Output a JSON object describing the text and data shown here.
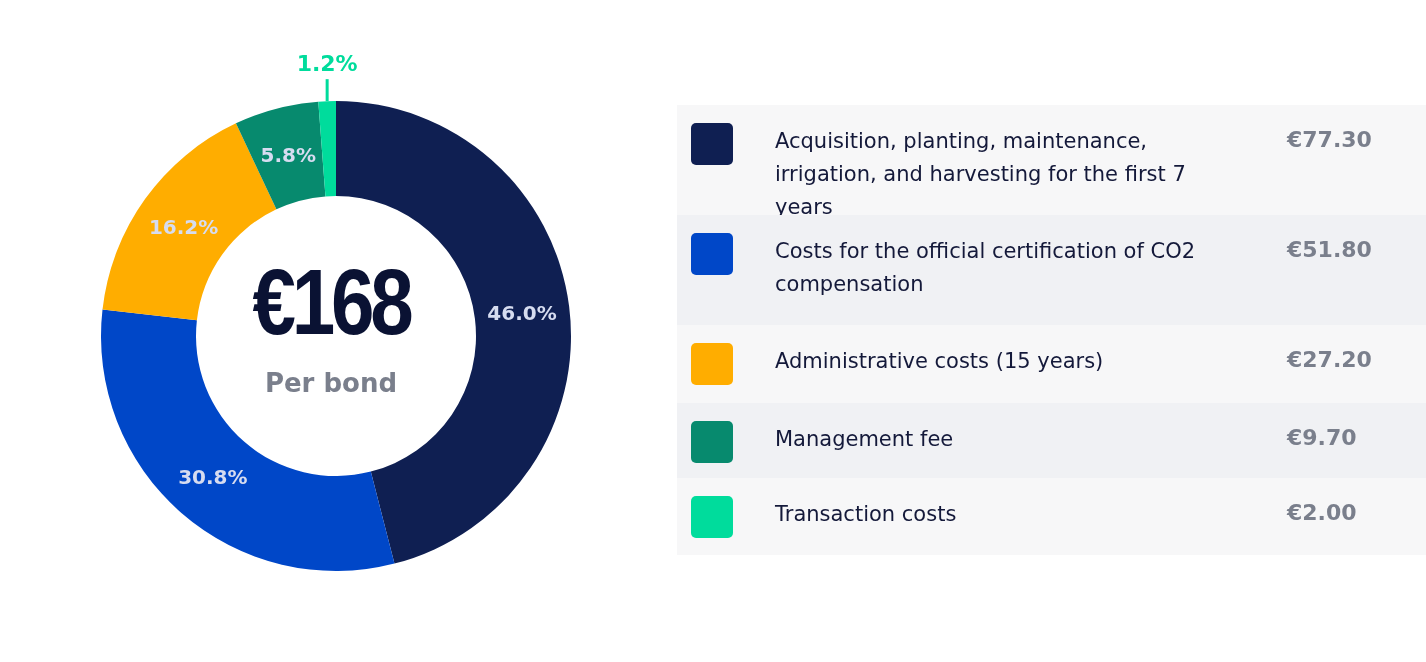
{
  "chart_data": {
    "type": "donut",
    "title": "€168",
    "subtitle": "Per bond",
    "categories": [
      "Acquisition, planting, maintenance, irrigation, and harvesting for the first 7 years",
      "Costs for the official certification of CO2 compensation",
      "Administrative costs (15 years)",
      "Management fee",
      "Transaction costs"
    ],
    "values": [
      46.0,
      30.8,
      16.2,
      5.8,
      1.2
    ],
    "colors": [
      "#0f1f52",
      "#0047c8",
      "#ffad00",
      "#078a6e",
      "#00dc9c"
    ],
    "value_labels": [
      "46.0%",
      "30.8%",
      "16.2%",
      "5.8%",
      "1.2%"
    ],
    "annotations": [
      "€77.30",
      "€51.80",
      "€27.20",
      "€9.70",
      "€2.00"
    ],
    "legend": "right"
  }
}
